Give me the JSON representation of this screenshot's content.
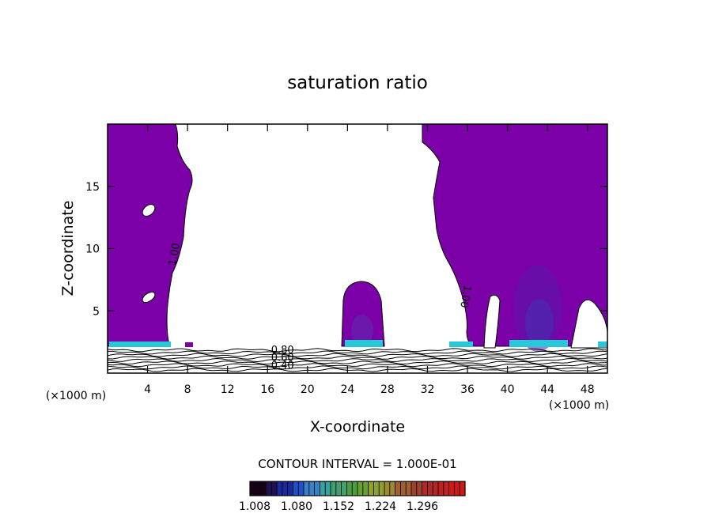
{
  "chart_data": {
    "type": "heatmap",
    "title": "saturation ratio",
    "xlabel": "X-coordinate",
    "ylabel": "Z-coordinate",
    "x_units_left": "(×1000 m)",
    "x_units_right": "(×1000 m)",
    "xlim": [
      0,
      50
    ],
    "ylim": [
      0,
      20
    ],
    "x_ticks": [
      4,
      8,
      12,
      16,
      20,
      24,
      28,
      32,
      36,
      40,
      44,
      48
    ],
    "y_ticks": [
      5,
      10,
      15
    ],
    "contour_interval_text": "CONTOUR INTERVAL = 1.000E-01",
    "contour_labels": [
      {
        "text": "0.80",
        "x": 17.5,
        "z": 1.6
      },
      {
        "text": "0.60",
        "x": 17.5,
        "z": 1.0
      },
      {
        "text": "0.40",
        "x": 17.5,
        "z": 0.35
      },
      {
        "text": "1.00",
        "x": 7.0,
        "z": 9.5,
        "rotate": -80
      },
      {
        "text": "1.00",
        "x": 35.5,
        "z": 6.2,
        "rotate": 100
      }
    ],
    "colorbar": {
      "tick_labels": [
        "1.008",
        "1.080",
        "1.152",
        "1.224",
        "1.296"
      ],
      "colors": [
        "#180018",
        "#221050",
        "#1a2a9a",
        "#2050c8",
        "#3a80c8",
        "#3aa0a0",
        "#40a070",
        "#4aa040",
        "#6aa030",
        "#90a030",
        "#a08830",
        "#a06030",
        "#a04030",
        "#b02828",
        "#c02020",
        "#d01818"
      ]
    },
    "fill_color_supersaturated": "#7c00a8",
    "high_value_color": "#28c8d8",
    "low_contour_levels": [
      0.1,
      0.2,
      0.3,
      0.4,
      0.5,
      0.6,
      0.7,
      0.8,
      0.9
    ]
  }
}
